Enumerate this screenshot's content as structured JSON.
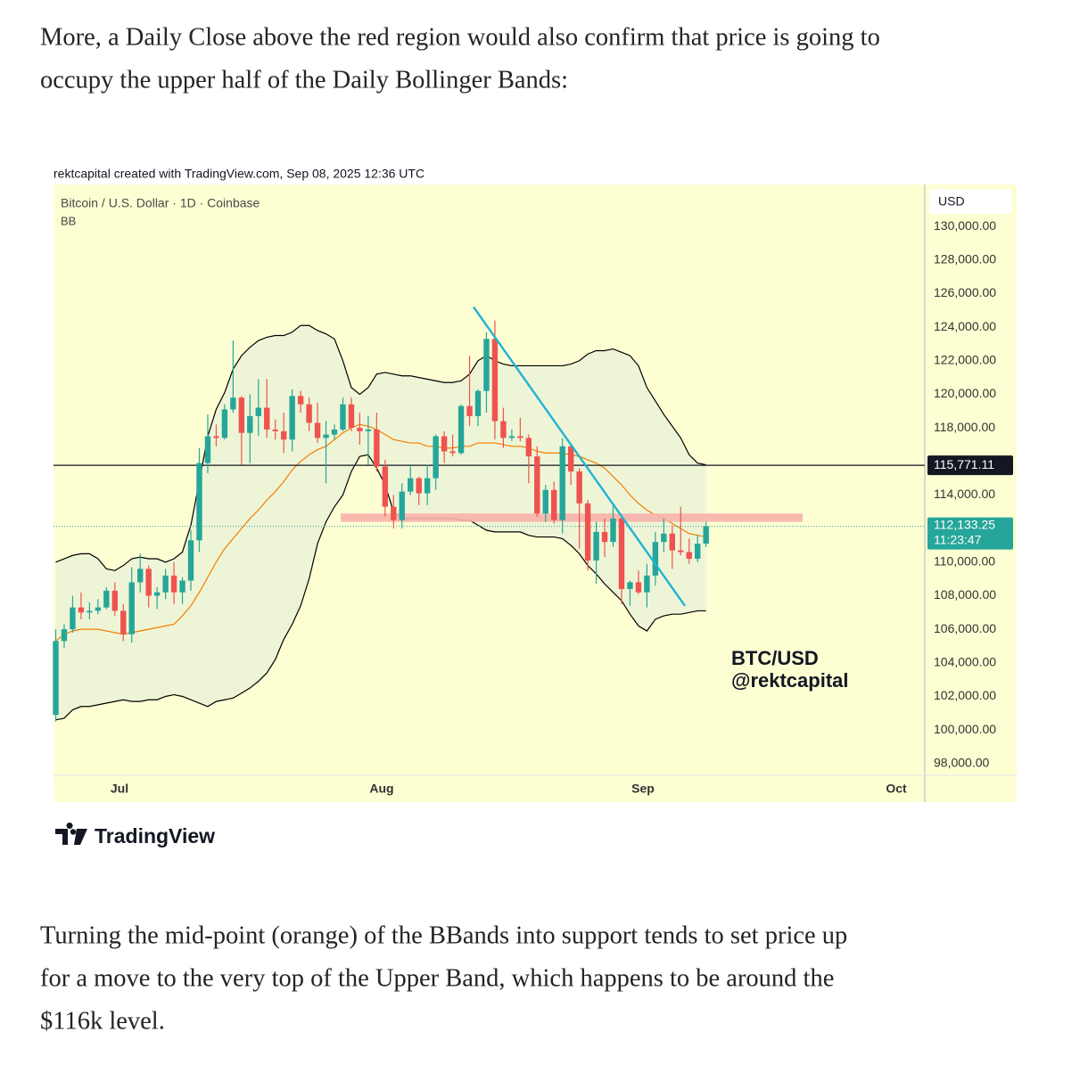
{
  "paragraphs": [
    [
      "More, a Daily Close above the red region would also confirm that price is going to",
      "occupy the upper half of the Daily Bollinger Bands:"
    ],
    [
      "Turning the mid-point (orange) of the BBands into support tends to set price up",
      "for a move to the very top of the Upper Band, which happens to be around the",
      "$116k level."
    ]
  ],
  "caption": "rektcapital created with TradingView.com, Sep 08, 2025 12:36 UTC",
  "brand": "TradingView",
  "chart_data": {
    "type": "candlestick",
    "symbol": "Bitcoin / U.S. Dollar · 1D · Coinbase",
    "indicator": "BB",
    "currency": "USD",
    "watermark": [
      "BTC/USD",
      "@rektcapital"
    ],
    "xtick_labels": [
      "Jul",
      "Aug",
      "Sep",
      "Oct"
    ],
    "ylim": [
      97300,
      132500
    ],
    "yticks": [
      {
        "value": 130000,
        "label": "130,000.00"
      },
      {
        "value": 128000,
        "label": "128,000.00"
      },
      {
        "value": 126000,
        "label": "126,000.00"
      },
      {
        "value": 124000,
        "label": "124,000.00"
      },
      {
        "value": 122000,
        "label": "122,000.00"
      },
      {
        "value": 120000,
        "label": "120,000.00"
      },
      {
        "value": 118000,
        "label": "118,000.00"
      },
      {
        "value": 114000,
        "label": "114,000.00"
      },
      {
        "value": 110000,
        "label": "110,000.00"
      },
      {
        "value": 108000,
        "label": "108,000.00"
      },
      {
        "value": 106000,
        "label": "106,000.00"
      },
      {
        "value": 104000,
        "label": "104,000.00"
      },
      {
        "value": 102000,
        "label": "102,000.00"
      },
      {
        "value": 100000,
        "label": "100,000.00"
      },
      {
        "value": 98000,
        "label": "98,000.00"
      }
    ],
    "up_color": "#26a69a",
    "down_color": "#ef5350",
    "open": [
      100900,
      105300,
      106000,
      107300,
      107000,
      107100,
      107300,
      108300,
      107100,
      105700,
      108800,
      109600,
      108000,
      108200,
      109200,
      108200,
      108900,
      111300,
      115900,
      117500,
      117400,
      119100,
      119800,
      117700,
      118700,
      119200,
      117900,
      117800,
      117300,
      119900,
      119400,
      118300,
      117400,
      117600,
      117900,
      119400,
      118000,
      117800,
      117900,
      115700,
      113300,
      112500,
      114200,
      115000,
      114100,
      115000,
      117500,
      116600,
      116500,
      119300,
      118700,
      120200,
      123300,
      118400,
      117400,
      117500,
      117400,
      116300,
      112900,
      114300,
      112500,
      116900,
      115400,
      113500,
      110100,
      111800,
      111200,
      112600,
      108400,
      108800,
      108200,
      109200,
      111200,
      111700,
      110700,
      110600,
      110200,
      111100
    ],
    "high": [
      106000,
      106300,
      108000,
      108200,
      107600,
      107800,
      108500,
      108800,
      107500,
      109700,
      110500,
      109800,
      108500,
      109600,
      110000,
      109100,
      111900,
      116800,
      118800,
      118200,
      119400,
      123200,
      119900,
      120000,
      120900,
      120900,
      118500,
      118900,
      120300,
      120200,
      119800,
      119500,
      118400,
      118200,
      119800,
      119800,
      118900,
      118700,
      118900,
      116100,
      114000,
      114700,
      115700,
      115100,
      115800,
      117600,
      117800,
      117600,
      119400,
      122300,
      120300,
      123700,
      124400,
      119200,
      117900,
      118600,
      117600,
      116900,
      114600,
      114800,
      117400,
      117000,
      115600,
      113700,
      112400,
      112600,
      113500,
      112700,
      108900,
      109500,
      109900,
      111800,
      112600,
      112200,
      113300,
      111400,
      111600,
      112400
    ],
    "low": [
      100500,
      104900,
      105800,
      106600,
      106600,
      106900,
      107200,
      106800,
      105300,
      105200,
      108200,
      107300,
      107200,
      107800,
      107500,
      107500,
      108300,
      110600,
      115300,
      116900,
      117300,
      118900,
      115800,
      115900,
      117500,
      117400,
      117300,
      116500,
      116600,
      118900,
      117800,
      117100,
      114700,
      117300,
      117800,
      117800,
      117000,
      115800,
      115400,
      112700,
      112000,
      112000,
      114000,
      113400,
      113400,
      114300,
      115900,
      116300,
      116400,
      118100,
      118100,
      118900,
      117300,
      116800,
      117200,
      117200,
      114700,
      112700,
      112400,
      112300,
      111700,
      114600,
      110800,
      109500,
      108700,
      110300,
      110900,
      107500,
      107400,
      108100,
      107300,
      108600,
      110600,
      109600,
      110400,
      109900,
      110000,
      110900
    ],
    "close": [
      105300,
      106000,
      107300,
      107000,
      107100,
      107300,
      108300,
      107100,
      105700,
      108800,
      109600,
      108000,
      108200,
      109200,
      108200,
      108900,
      111300,
      115900,
      117500,
      117400,
      119100,
      119800,
      117700,
      118700,
      119200,
      117900,
      117800,
      117300,
      119900,
      119400,
      118300,
      117400,
      117600,
      117900,
      119400,
      118000,
      117800,
      117900,
      115700,
      113300,
      112500,
      114200,
      115000,
      114100,
      115000,
      117500,
      116600,
      116500,
      119300,
      118700,
      120200,
      123300,
      118400,
      117400,
      117500,
      117400,
      116300,
      112900,
      114300,
      112500,
      116900,
      115400,
      113500,
      110100,
      111800,
      111200,
      112600,
      108400,
      108800,
      108200,
      109200,
      111200,
      111700,
      110700,
      110600,
      110200,
      111100,
      112133.25
    ],
    "bb_upper": [
      110000,
      110200,
      110400,
      110500,
      110500,
      110200,
      109600,
      109500,
      109800,
      110200,
      110300,
      110200,
      110200,
      110000,
      110200,
      110600,
      112200,
      114800,
      117500,
      119100,
      120100,
      121500,
      122300,
      122800,
      123200,
      123400,
      123500,
      123500,
      123700,
      124100,
      124100,
      123800,
      123600,
      123300,
      122000,
      120400,
      120000,
      120400,
      121200,
      121300,
      121200,
      121100,
      121100,
      121000,
      120900,
      120800,
      120700,
      120700,
      120800,
      121200,
      122000,
      122300,
      122000,
      121800,
      121700,
      121700,
      121700,
      121700,
      121700,
      121700,
      121700,
      121800,
      122000,
      122400,
      122600,
      122600,
      122700,
      122500,
      122300,
      121700,
      120400,
      119600,
      118800,
      118100,
      117400,
      116400,
      115900,
      115800
    ],
    "bb_middle": [
      105300,
      105700,
      105900,
      106000,
      106000,
      106000,
      105900,
      105800,
      105700,
      105800,
      105900,
      106000,
      106100,
      106200,
      106300,
      106800,
      107400,
      108200,
      109100,
      110000,
      110800,
      111400,
      112000,
      112600,
      113100,
      113700,
      114200,
      114800,
      115500,
      116000,
      116400,
      116700,
      116900,
      117300,
      117700,
      118000,
      118200,
      118100,
      117900,
      117600,
      117300,
      117200,
      117100,
      117100,
      116900,
      116900,
      116800,
      116800,
      116900,
      116900,
      117100,
      117100,
      117100,
      117000,
      116900,
      116900,
      116800,
      116600,
      116500,
      116500,
      116500,
      116400,
      116300,
      116100,
      115900,
      115600,
      115100,
      114600,
      114000,
      113500,
      113100,
      112800,
      112600,
      112300,
      112000,
      111700,
      111600,
      111500
    ],
    "bb_lower": [
      100600,
      100700,
      101200,
      101400,
      101400,
      101500,
      101600,
      101700,
      101800,
      101700,
      101700,
      101800,
      101800,
      102000,
      102100,
      102000,
      101800,
      101600,
      101400,
      101700,
      101800,
      101900,
      102200,
      102500,
      102900,
      103400,
      104200,
      105400,
      106300,
      107400,
      109000,
      111100,
      112400,
      113300,
      114000,
      115400,
      116300,
      116400,
      115600,
      114600,
      113000,
      112600,
      112600,
      112600,
      112600,
      112600,
      112600,
      112600,
      112500,
      112500,
      112200,
      111900,
      111800,
      111800,
      111800,
      111800,
      111600,
      111500,
      111500,
      111500,
      111400,
      111000,
      110500,
      109800,
      109300,
      108700,
      108200,
      107700,
      106900,
      106200,
      105900,
      106600,
      106800,
      106900,
      106900,
      107000,
      107100,
      107100
    ],
    "band_color": "#000000",
    "middle_color": "#f57c00",
    "band_fill": "#eef5d6",
    "hline": {
      "value": 115771.11,
      "label": "115,771.11"
    },
    "price_label": "112,133.25",
    "countdown": "11:23:47",
    "zone": [
      112400,
      112900
    ],
    "zone_color": "#f7b2ab",
    "trendline": [
      125200,
      107400
    ],
    "trendline_color": "#1eb4d4"
  }
}
